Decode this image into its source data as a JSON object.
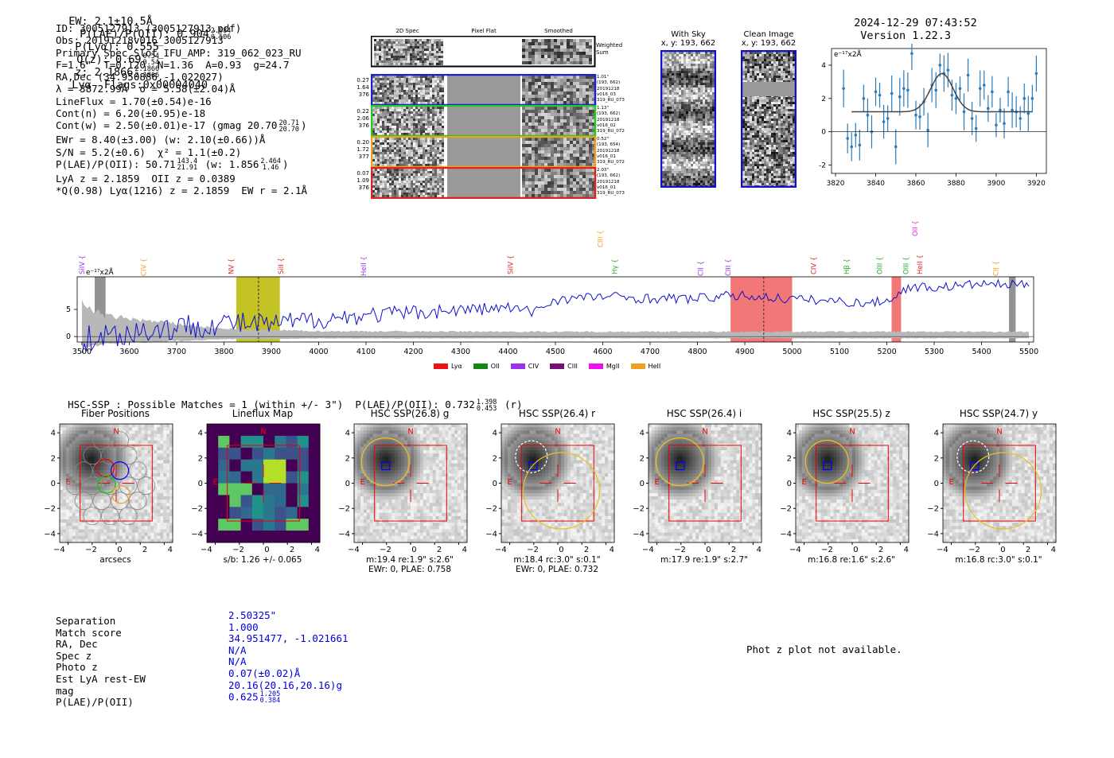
{
  "header": {
    "ew": "EW: 2.1±10.5Å",
    "plae_label": "P(LAE)/P(OII): 0.904",
    "plae_hi": "2.084",
    "plae_lo": "0.506",
    "plya": "P(Lyα): 0.555",
    "qz_label": "Q(z): 0.69",
    "qz_hi": "0.54",
    "qz_lo": "0.54",
    "z_label": "z: 2.1866",
    "z_hi": "2.1866",
    "z_lo": "2.1866",
    "line_flags": "Lyα  Flags:0x00004040",
    "datetime": "2024-12-29 07:43:52",
    "version": "Version 1.22.3"
  },
  "info": {
    "id": "ID: 3005127913 (3005127913.pdf)",
    "obs": "Obs: 20191218v016_3005127913",
    "primary": "Primary Spec_Slot_IFU_AMP: 319_062_023_RU",
    "fwhm": "F=1.6\"  T=0.120  N=1.36  A=0.93  g=24.7",
    "radec": "RA,Dec (34.950886,-1.022027)",
    "lambda": "λ = 3872.99Å  σ = 5.58(±2.04)Å",
    "lineflux": "LineFlux = 1.70(±0.54)e-16",
    "contn": "Cont(n) = 6.20(±0.95)e-18",
    "contw": "Cont(w) = 2.50(±0.01)e-17 (gmag 20.70",
    "contw_hi": "20.71",
    "contw_lo": "20.70",
    "ewr": "EWr = 8.40(±3.00) (w: 2.10(±0.66))Å",
    "sn": "S/N = 5.2(±0.6)  χ² = 1.1(±0.2)",
    "plae": "P(LAE)/P(OII): 50.71",
    "plae_hi": "143.4",
    "plae_lo": "21.91",
    "plae_w": "(w: 1.856",
    "plae_w_hi": "2.464",
    "plae_w_lo": "1.46",
    "lyaz": "LyA z = 2.1859  OII z = 0.0389",
    "q": "*Q(0.98) Lyα(1216) z = 2.1859  EW r = 2.1Å"
  },
  "spec2d": {
    "col_headers": [
      "2D Spec",
      "Pixel Flat",
      "Smoothed"
    ],
    "weighted_sum": "Weighted Sum",
    "rows": [
      {
        "left": [
          "0.27",
          "1.64",
          "376"
        ],
        "right": [
          "1.01\"",
          "(193, 662)",
          "20191218",
          "v016_03",
          "319_RU_073"
        ],
        "color": "#1f1fd0"
      },
      {
        "left": [
          "0.22",
          "2.06",
          "376"
        ],
        "right": [
          "1.13\"",
          "(193, 662)",
          "20191218",
          "v016_02",
          "319_RU_072"
        ],
        "color": "#22cc22"
      },
      {
        "left": [
          "0.20",
          "1.72",
          "377"
        ],
        "right": [
          "0.52\"",
          "(193, 654)",
          "20191218",
          "v016_01",
          "319_RU_072"
        ],
        "color": "#f0a020"
      },
      {
        "left": [
          "0.07",
          "1.09",
          "376"
        ],
        "right": [
          "2.03\"",
          "(193, 662)",
          "20191218",
          "v016_01",
          "319_RU_073"
        ],
        "color": "#dd2222"
      }
    ]
  },
  "with_sky": {
    "title": "With Sky",
    "coords": "x, y: 193, 662"
  },
  "clean_image": {
    "title": "Clean Image",
    "coords": "x, y: 193, 662"
  },
  "zoom_plot": {
    "ylabel": "e⁻¹⁷x2Å",
    "xticks": [
      "3820",
      "3840",
      "3860",
      "3880",
      "3900",
      "3920"
    ],
    "yticks": [
      "4",
      "2",
      "0",
      "-2"
    ]
  },
  "full_spec": {
    "ylabel": "e⁻¹⁷x2Å",
    "xticks": [
      "3500",
      "3600",
      "3700",
      "3800",
      "3900",
      "4000",
      "4100",
      "4200",
      "4300",
      "4400",
      "4500",
      "4600",
      "4700",
      "4800",
      "4900",
      "5000",
      "5100",
      "5200",
      "5300",
      "5400",
      "5500"
    ],
    "yticks": [
      "5",
      "0"
    ],
    "line_labels": [
      {
        "text": "SiIV",
        "color": "#9933ee"
      },
      {
        "text": "CIV",
        "color": "#f0a020"
      },
      {
        "text": "NV",
        "color": "#dd2222"
      },
      {
        "text": "SiII",
        "color": "#dd2222"
      },
      {
        "text": "HeII",
        "color": "#9933ee"
      },
      {
        "text": "SiIV",
        "color": "#dd2222"
      },
      {
        "text": "CIII",
        "color": "#f0a020"
      },
      {
        "text": "Hγ",
        "color": "#22aa22"
      },
      {
        "text": "CII",
        "color": "#9933ee"
      },
      {
        "text": "CIII",
        "color": "#9933ee"
      },
      {
        "text": "CIV",
        "color": "#dd2222"
      },
      {
        "text": "Hβ",
        "color": "#22aa22"
      },
      {
        "text": "OIII",
        "color": "#22aa22"
      },
      {
        "text": "OIII",
        "color": "#22aa22"
      },
      {
        "text": "HeII",
        "color": "#dd2222"
      },
      {
        "text": "OII",
        "color": "#ee22ee"
      },
      {
        "text": "CII",
        "color": "#f0a020"
      }
    ],
    "legend": [
      {
        "name": "Lyα",
        "color": "#ee1111"
      },
      {
        "name": "OII",
        "color": "#118811"
      },
      {
        "name": "CIV",
        "color": "#9933ee"
      },
      {
        "name": "CIII",
        "color": "#771177"
      },
      {
        "name": "MgII",
        "color": "#ee11ee"
      },
      {
        "name": "HeII",
        "color": "#f0a020"
      }
    ]
  },
  "chart_data": [
    {
      "type": "scatter",
      "title": "",
      "xlabel": "",
      "ylabel": "e-17x2Å",
      "xlim": [
        3818,
        3925
      ],
      "ylim": [
        -2.5,
        5.0
      ],
      "points_x": [
        3824,
        3826,
        3828,
        3830,
        3832,
        3834,
        3836,
        3838,
        3840,
        3842,
        3844,
        3846,
        3848,
        3850,
        3852,
        3854,
        3856,
        3858,
        3860,
        3862,
        3864,
        3866,
        3868,
        3870,
        3872,
        3874,
        3876,
        3878,
        3880,
        3882,
        3884,
        3886,
        3888,
        3890,
        3892,
        3894,
        3896,
        3898,
        3900,
        3902,
        3904,
        3906,
        3908,
        3910,
        3912,
        3914,
        3916,
        3918,
        3920
      ],
      "points_y": [
        2.6,
        -0.4,
        -0.9,
        -0.2,
        -0.8,
        2.0,
        1.0,
        0.0,
        2.4,
        2.2,
        0.6,
        0.8,
        2.3,
        -0.9,
        2.1,
        2.6,
        2.5,
        4.7,
        1.0,
        0.9,
        1.8,
        0.1,
        2.8,
        2.5,
        4.0,
        3.5,
        3.7,
        2.2,
        2.0,
        2.6,
        1.2,
        3.4,
        0.8,
        0.2,
        2.6,
        2.8,
        1.4,
        2.4,
        0.4,
        1.3,
        0.5,
        2.4,
        1.3,
        1.2,
        0.8,
        2.0,
        1.1,
        2.0,
        3.5
      ],
      "fit_baseline": 1.2,
      "fit_peak_x": 3872.99,
      "fit_sigma": 5.58,
      "fit_amp": 2.3
    },
    {
      "type": "line",
      "title": "",
      "xlabel": "",
      "ylabel": "e-17x2Å",
      "xlim": [
        3490,
        5510
      ],
      "ylim": [
        -1,
        11
      ],
      "series": [
        {
          "name": "spectrum",
          "color": "#0000cc",
          "x_range": [
            3500,
            5500
          ],
          "x_step": 5,
          "segments": [
            [
              3500,
              -0.5
            ],
            [
              3600,
              0.8
            ],
            [
              3700,
              1.7
            ],
            [
              3800,
              2.5
            ],
            [
              3900,
              2.2
            ],
            [
              4000,
              3.2
            ],
            [
              4100,
              3.9
            ],
            [
              4200,
              4.4
            ],
            [
              4300,
              4.9
            ],
            [
              4400,
              5.3
            ],
            [
              4450,
              4.5
            ],
            [
              4500,
              6.8
            ],
            [
              4600,
              7.4
            ],
            [
              4700,
              7.0
            ],
            [
              4800,
              7.0
            ],
            [
              4850,
              7.4
            ],
            [
              4900,
              7.5
            ],
            [
              5000,
              6.9
            ],
            [
              5100,
              6.5
            ],
            [
              5150,
              6.1
            ],
            [
              5200,
              6.6
            ],
            [
              5250,
              9.2
            ],
            [
              5300,
              9.0
            ],
            [
              5400,
              9.7
            ],
            [
              5500,
              9.5
            ]
          ],
          "noise_amp": [
            [
              3500,
              1.8
            ],
            [
              3800,
              1.4
            ],
            [
              4100,
              1.0
            ],
            [
              4500,
              0.6
            ],
            [
              5500,
              0.5
            ]
          ]
        },
        {
          "name": "error",
          "color": "#aaaaaa",
          "x_range": [
            3500,
            5500
          ],
          "level": [
            [
              3500,
              6.0
            ],
            [
              3550,
              3.8
            ],
            [
              3650,
              2.8
            ],
            [
              3800,
              1.4
            ],
            [
              4000,
              1.0
            ],
            [
              4500,
              0.9
            ],
            [
              5500,
              0.9
            ]
          ]
        }
      ],
      "highlight_bands": [
        {
          "x": [
            3826,
            3918
          ],
          "color": "#b8b800"
        },
        {
          "x": [
            4870,
            5000
          ],
          "color": "#f06060"
        },
        {
          "x": [
            5210,
            5230
          ],
          "color": "#f06060"
        }
      ],
      "marker_lines": [
        3872.99,
        4940
      ],
      "hatched_bands": [
        [
          3527,
          3550
        ],
        [
          5458,
          5472
        ]
      ]
    },
    {
      "type": "table",
      "title": "HSC-SSP : Possible Matches = 1 (within +/- 3\")",
      "plae_label": "P(LAE)/P(OII): 0.732",
      "plae_hi": "1.398",
      "plae_lo": "0.453",
      "plae_band": "(r)"
    }
  ],
  "cutouts": [
    {
      "title": "Fiber Positions",
      "cap1": "arcsecs",
      "cap2": ""
    },
    {
      "title": "Lineflux Map",
      "cap1": "s/b: 1.26 +/- 0.065",
      "cap2": ""
    },
    {
      "title": "HSC SSP(26.8) g",
      "cap1": "m:19.4  re:1.9\"  s:2.6\"",
      "cap2": "EWr: 0, PLAE: 0.758"
    },
    {
      "title": "HSC SSP(26.4) r",
      "cap1": "m:18.4 rc:3.0\"  s:0.1\"",
      "cap2": "EWr: 0, PLAE: 0.732"
    },
    {
      "title": "HSC SSP(26.4) i",
      "cap1": "m:17.9  re:1.9\"  s:2.7\"",
      "cap2": ""
    },
    {
      "title": "HSC SSP(25.5) z",
      "cap1": "m:16.8  re:1.6\"  s:2.6\"",
      "cap2": ""
    },
    {
      "title": "HSC SSP(24.7) y",
      "cap1": "m:16.8 rc:3.0\"  s:0.1\"",
      "cap2": ""
    }
  ],
  "cutout_ticks": {
    "x": [
      "-4",
      "-2",
      "0",
      "2",
      "4"
    ],
    "y": [
      "4",
      "2",
      "0",
      "-2",
      "-4"
    ],
    "north": "N",
    "east": "E"
  },
  "bottom": {
    "labels": [
      "Separation",
      "Match score",
      "RA, Dec",
      "Spec z",
      "Photo z",
      "Est LyA rest-EW",
      "mag",
      "P(LAE)/P(OII)"
    ],
    "values": [
      "2.50325\"",
      "1.000",
      "34.951477, -1.021661",
      "N/A",
      "N/A",
      "0.07(±0.02)Å",
      "20.16(20.16,20.16)g",
      "0.625"
    ],
    "plae_hi": "1.205",
    "plae_lo": "0.384",
    "photz_msg": "Phot z plot not available."
  }
}
